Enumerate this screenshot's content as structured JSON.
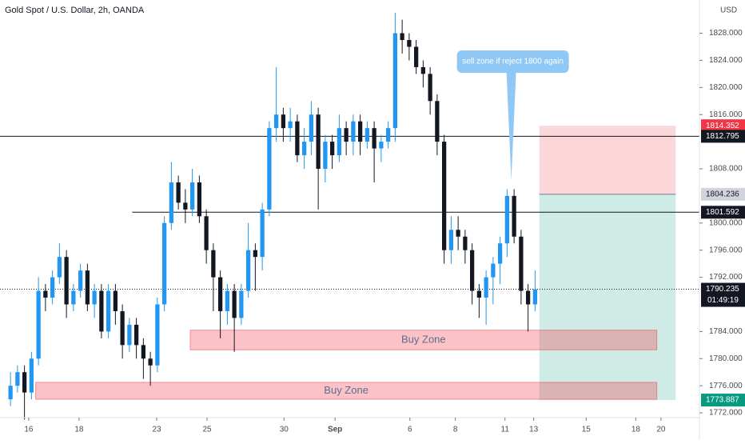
{
  "chart_data": {
    "type": "candlestick",
    "title": "Gold Spot / U.S. Dollar, 2h, OANDA",
    "currency": "USD",
    "up_color": "#2196f3",
    "down_color": "#131722",
    "open": [
      1774,
      1776,
      1778,
      1775,
      1780,
      1790,
      1789,
      1792,
      1795,
      1788,
      1790,
      1793,
      1788,
      1790,
      1784,
      1790,
      1787,
      1782,
      1785,
      1782,
      1780,
      1779,
      1788,
      1800,
      1806,
      1803,
      1802,
      1806,
      1801,
      1796,
      1792,
      1787,
      1790,
      1786,
      1790,
      1796,
      1795,
      1802,
      1814,
      1816,
      1814,
      1815,
      1810,
      1812,
      1816,
      1808,
      1812,
      1810,
      1814,
      1812,
      1815,
      1812,
      1814,
      1811,
      1812,
      1814,
      1828,
      1827,
      1826,
      1823,
      1822,
      1818,
      1812,
      1796,
      1799,
      1798,
      1796,
      1790,
      1789,
      1792,
      1794,
      1797,
      1804,
      1798,
      1790,
      1788
    ],
    "high": [
      1778,
      1779,
      1779,
      1781,
      1792,
      1791,
      1793,
      1797,
      1796,
      1791,
      1794,
      1794,
      1791,
      1791,
      1791,
      1791,
      1788,
      1786,
      1786,
      1783,
      1781,
      1789,
      1801,
      1809,
      1807,
      1805,
      1808,
      1807,
      1802,
      1797,
      1793,
      1791,
      1791,
      1791,
      1800,
      1797,
      1803,
      1815,
      1823,
      1817,
      1817,
      1816,
      1814,
      1818,
      1817,
      1813,
      1813,
      1816,
      1815,
      1816,
      1816,
      1815,
      1815,
      1813,
      1815,
      1831,
      1830,
      1828,
      1827,
      1824,
      1823,
      1819,
      1813,
      1801,
      1801,
      1799,
      1797,
      1791,
      1793,
      1795,
      1798,
      1805,
      1805,
      1799,
      1791,
      1793
    ],
    "low": [
      1773,
      1775,
      1771,
      1774,
      1779,
      1787,
      1788,
      1791,
      1786,
      1787,
      1789,
      1787,
      1786,
      1783,
      1783,
      1785,
      1780,
      1781,
      1780,
      1777,
      1776,
      1778,
      1787,
      1799,
      1802,
      1800,
      1801,
      1800,
      1794,
      1787,
      1783,
      1785,
      1781,
      1785,
      1789,
      1790,
      1793,
      1801,
      1812,
      1812,
      1812,
      1809,
      1808,
      1810,
      1802,
      1806,
      1808,
      1809,
      1810,
      1810,
      1810,
      1811,
      1806,
      1809,
      1811,
      1812,
      1825,
      1824,
      1822,
      1820,
      1816,
      1810,
      1794,
      1794,
      1796,
      1794,
      1788,
      1786,
      1785,
      1788,
      1791,
      1795,
      1797,
      1788,
      1784,
      1787
    ],
    "close": [
      1776,
      1778,
      1775,
      1780,
      1790,
      1789,
      1792,
      1795,
      1788,
      1790,
      1793,
      1788,
      1790,
      1784,
      1790,
      1787,
      1782,
      1785,
      1782,
      1780,
      1779,
      1788,
      1800,
      1806,
      1803,
      1802,
      1806,
      1801,
      1796,
      1792,
      1787,
      1790,
      1786,
      1790,
      1796,
      1795,
      1802,
      1814,
      1816,
      1814,
      1815,
      1810,
      1812,
      1816,
      1808,
      1812,
      1810,
      1814,
      1812,
      1815,
      1812,
      1814,
      1811,
      1812,
      1814,
      1828,
      1827,
      1826,
      1823,
      1822,
      1818,
      1812,
      1796,
      1799,
      1798,
      1796,
      1790,
      1789,
      1792,
      1794,
      1797,
      1804,
      1798,
      1790,
      1788,
      1790.235
    ],
    "xlim": [
      0,
      100
    ],
    "xticks": [
      {
        "value": 4.1,
        "label": "16"
      },
      {
        "value": 11.3,
        "label": "18"
      },
      {
        "value": 22.4,
        "label": "23"
      },
      {
        "value": 29.6,
        "label": "25"
      },
      {
        "value": 40.6,
        "label": "30"
      },
      {
        "value": 47.9,
        "label": "Sep"
      },
      {
        "value": 58.6,
        "label": "6"
      },
      {
        "value": 65.1,
        "label": "8"
      },
      {
        "value": 72.2,
        "label": "11"
      },
      {
        "value": 76.3,
        "label": "13"
      },
      {
        "value": 83.8,
        "label": "15"
      },
      {
        "value": 90.9,
        "label": "18"
      },
      {
        "value": 94.5,
        "label": "20"
      }
    ],
    "ylim": [
      1771.3,
      1832.9
    ],
    "yticks": [
      {
        "value": 1772,
        "label": "1772.000"
      },
      {
        "value": 1776,
        "label": "1776.000"
      },
      {
        "value": 1780,
        "label": "1780.000"
      },
      {
        "value": 1784,
        "label": "1784.000"
      },
      {
        "value": 1792,
        "label": "1792.000"
      },
      {
        "value": 1796,
        "label": "1796.000"
      },
      {
        "value": 1800,
        "label": "1800.000"
      },
      {
        "value": 1808,
        "label": "1808.000"
      },
      {
        "value": 1816,
        "label": "1816.000"
      },
      {
        "value": 1820,
        "label": "1820.000"
      },
      {
        "value": 1824,
        "label": "1824.000"
      },
      {
        "value": 1828,
        "label": "1828.000"
      }
    ],
    "hlines": [
      {
        "value": 1812.795,
        "x0": 0,
        "x1": 100
      },
      {
        "value": 1801.592,
        "x0": 18.9,
        "x1": 100
      }
    ],
    "zones": [
      {
        "label": "Buy Zone",
        "low": 1781.3,
        "high": 1784.2,
        "x0": 27.2,
        "x1": 93.9
      },
      {
        "label": "Buy Zone",
        "low": 1774.0,
        "high": 1776.5,
        "x0": 5.1,
        "x1": 93.9
      }
    ],
    "position": {
      "x0": 77.1,
      "x1": 96.6,
      "target": 1773.887,
      "entry": 1804.236,
      "stop": 1814.352
    },
    "last_price": 1790.235,
    "countdown": "01:49:19",
    "annotation": {
      "text": "sell zone if reject 1800 again",
      "x": 73.1,
      "y": 1806.3
    }
  }
}
